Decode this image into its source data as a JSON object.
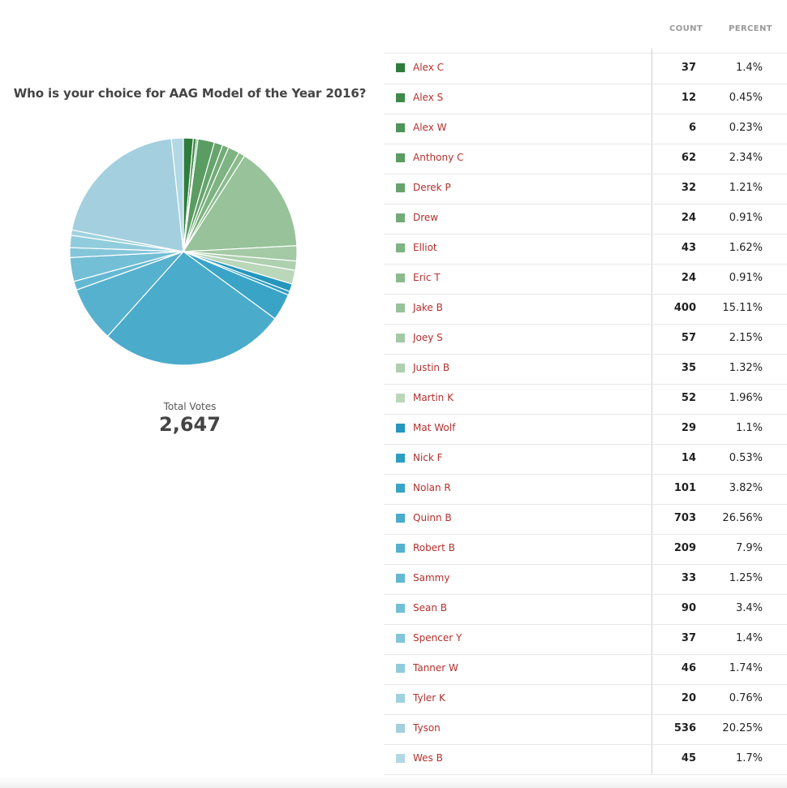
{
  "title": "Who is your choice for AAG Model of the Year 2016?",
  "total": {
    "label": "Total Votes",
    "value": "2,647"
  },
  "columns": {
    "count": "COUNT",
    "percent": "PERCENT"
  },
  "chart_data": {
    "type": "pie",
    "title": "Who is your choice for AAG Model of the Year 2016?",
    "categories": [
      "Alex C",
      "Alex S",
      "Alex W",
      "Anthony C",
      "Derek P",
      "Drew",
      "Elliot",
      "Eric T",
      "Jake B",
      "Joey S",
      "Justin B",
      "Martin K",
      "Mat Wolf",
      "Nick F",
      "Nolan R",
      "Quinn B",
      "Robert B",
      "Sammy",
      "Sean B",
      "Spencer Y",
      "Tanner W",
      "Tyler K",
      "Tyson",
      "Wes B"
    ],
    "values": [
      37,
      12,
      6,
      62,
      32,
      24,
      43,
      24,
      400,
      57,
      35,
      52,
      29,
      14,
      101,
      703,
      209,
      33,
      90,
      37,
      46,
      20,
      536,
      45
    ],
    "colors": [
      "#2e7d3c",
      "#3f8a4a",
      "#4f955a",
      "#5a9c62",
      "#67a46d",
      "#72ab77",
      "#7eb382",
      "#8bbb8d",
      "#97c29a",
      "#a3c9a5",
      "#aed0af",
      "#bad7ba",
      "#2596be",
      "#2e9dc2",
      "#3aa4c6",
      "#4aabcb",
      "#56b1cf",
      "#64b8d3",
      "#73bfd6",
      "#83c5d9",
      "#91ccdc",
      "#9fd2df",
      "#a3cfde",
      "#b2d8e4"
    ],
    "legend_placement": "right"
  },
  "rows": [
    {
      "name": "Alex C",
      "count": "37",
      "percent": "1.4%"
    },
    {
      "name": "Alex S",
      "count": "12",
      "percent": "0.45%"
    },
    {
      "name": "Alex W",
      "count": "6",
      "percent": "0.23%"
    },
    {
      "name": "Anthony C",
      "count": "62",
      "percent": "2.34%"
    },
    {
      "name": "Derek P",
      "count": "32",
      "percent": "1.21%"
    },
    {
      "name": "Drew",
      "count": "24",
      "percent": "0.91%"
    },
    {
      "name": "Elliot",
      "count": "43",
      "percent": "1.62%"
    },
    {
      "name": "Eric T",
      "count": "24",
      "percent": "0.91%"
    },
    {
      "name": "Jake B",
      "count": "400",
      "percent": "15.11%"
    },
    {
      "name": "Joey S",
      "count": "57",
      "percent": "2.15%"
    },
    {
      "name": "Justin B",
      "count": "35",
      "percent": "1.32%"
    },
    {
      "name": "Martin K",
      "count": "52",
      "percent": "1.96%"
    },
    {
      "name": "Mat Wolf",
      "count": "29",
      "percent": "1.1%"
    },
    {
      "name": "Nick F",
      "count": "14",
      "percent": "0.53%"
    },
    {
      "name": "Nolan R",
      "count": "101",
      "percent": "3.82%"
    },
    {
      "name": "Quinn B",
      "count": "703",
      "percent": "26.56%"
    },
    {
      "name": "Robert B",
      "count": "209",
      "percent": "7.9%"
    },
    {
      "name": "Sammy",
      "count": "33",
      "percent": "1.25%"
    },
    {
      "name": "Sean B",
      "count": "90",
      "percent": "3.4%"
    },
    {
      "name": "Spencer Y",
      "count": "37",
      "percent": "1.4%"
    },
    {
      "name": "Tanner W",
      "count": "46",
      "percent": "1.74%"
    },
    {
      "name": "Tyler K",
      "count": "20",
      "percent": "0.76%"
    },
    {
      "name": "Tyson",
      "count": "536",
      "percent": "20.25%"
    },
    {
      "name": "Wes B",
      "count": "45",
      "percent": "1.7%"
    }
  ]
}
